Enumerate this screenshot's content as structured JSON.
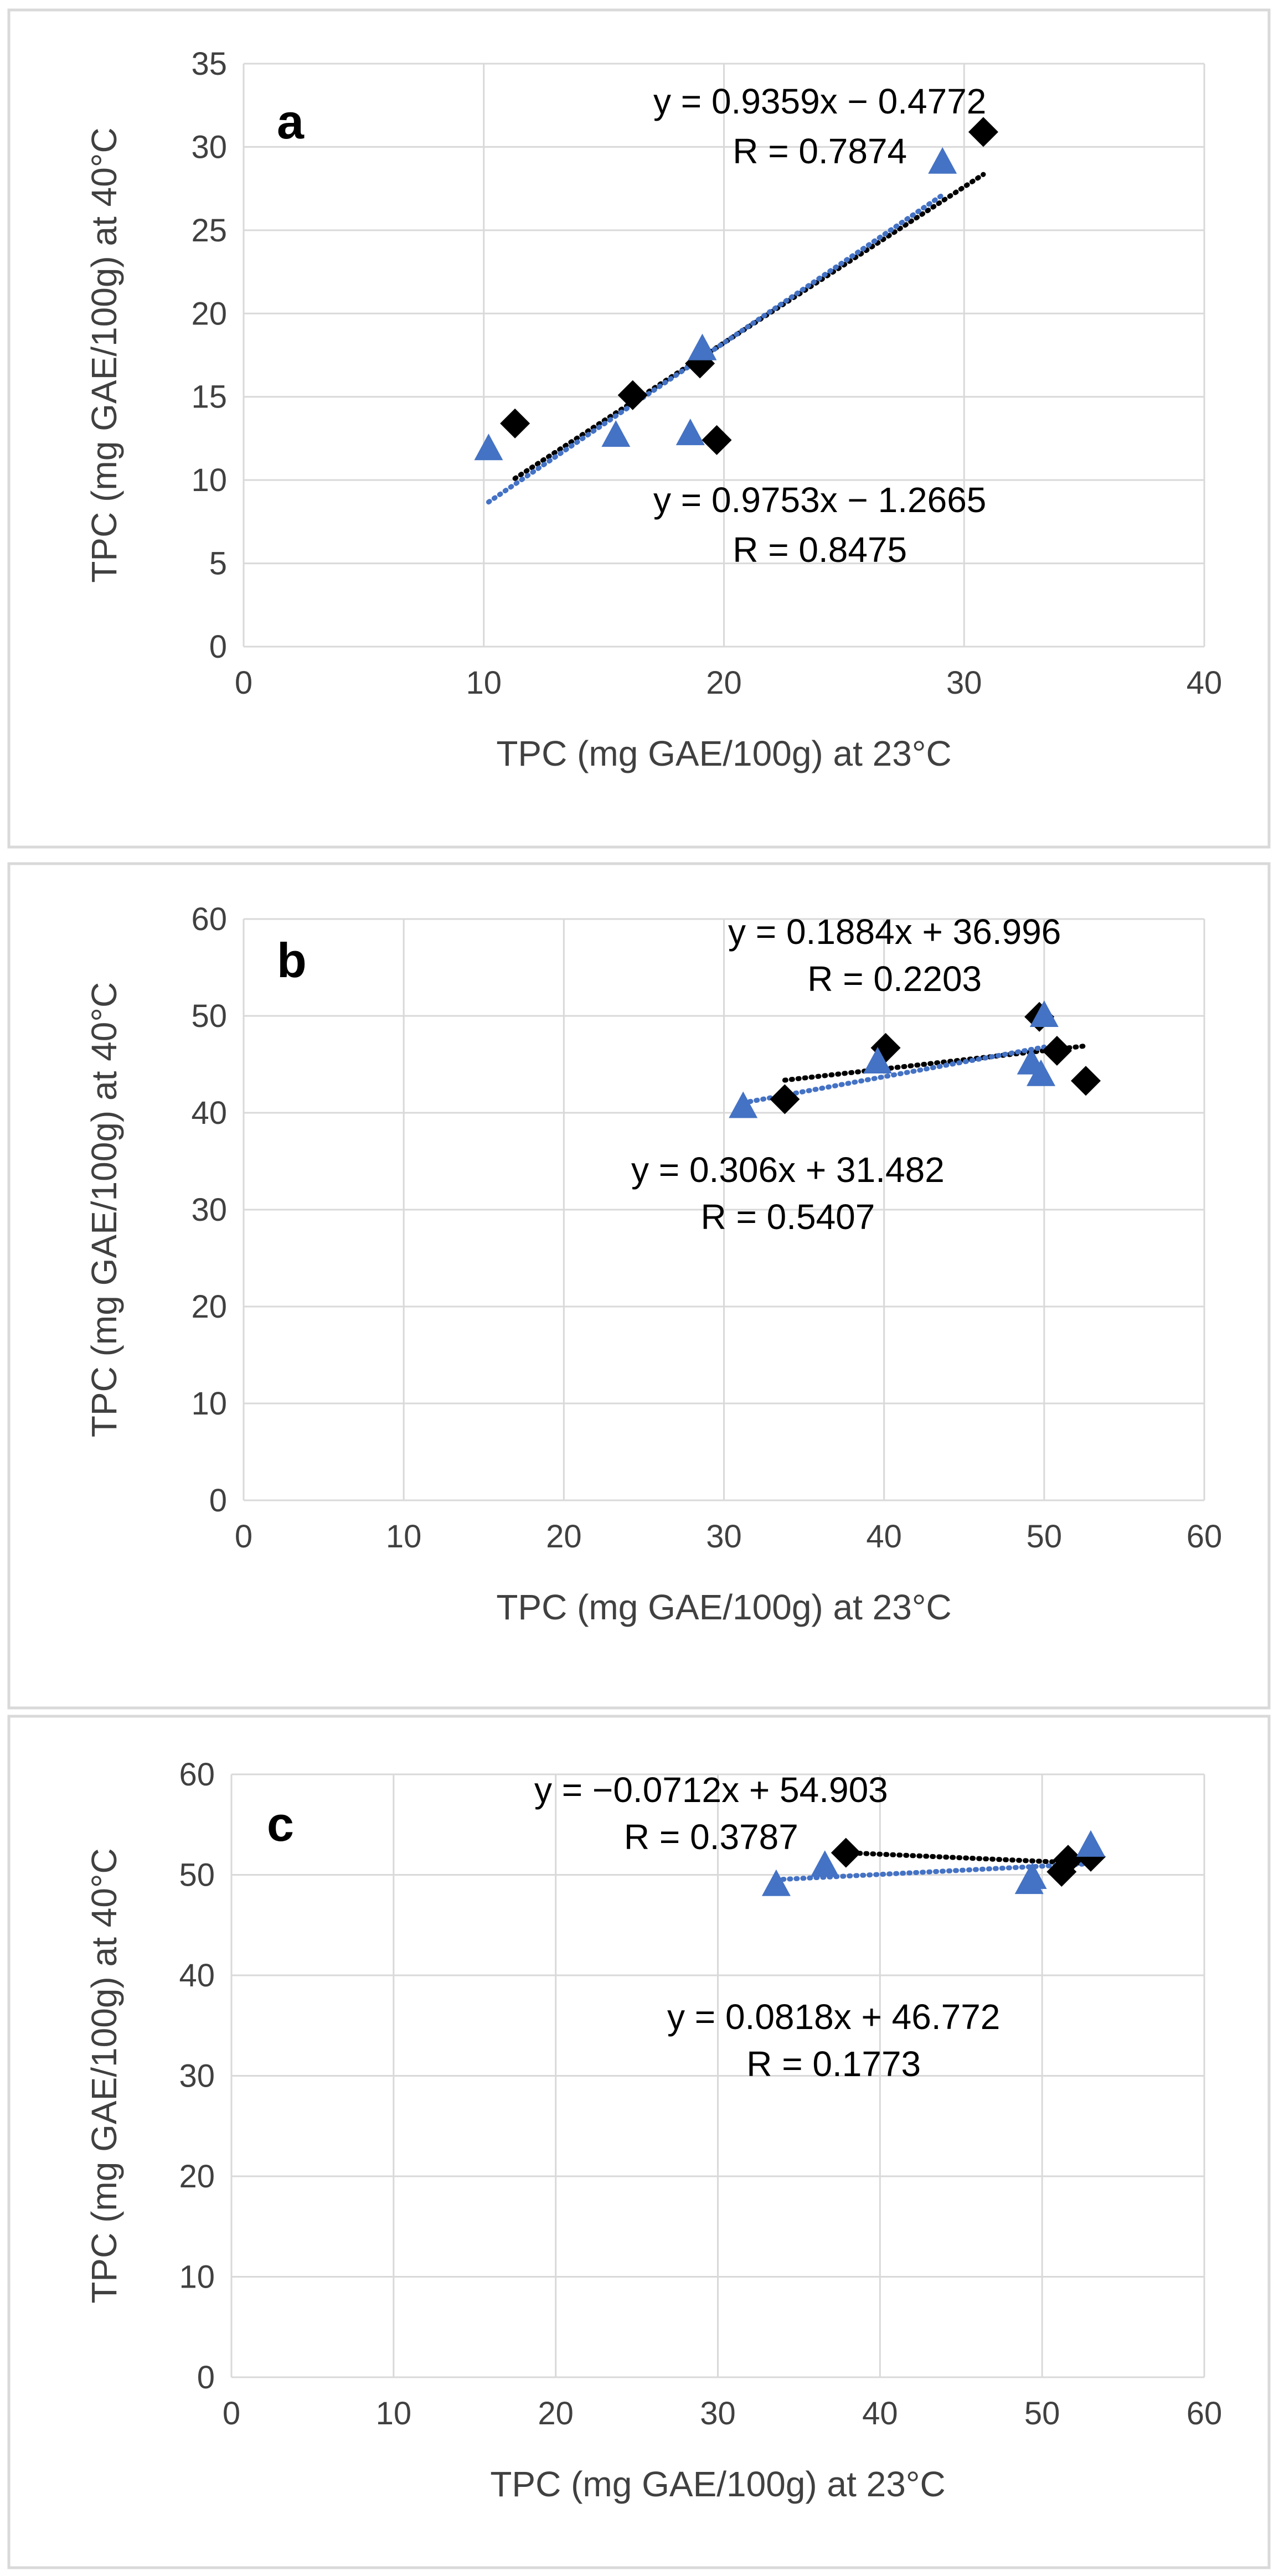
{
  "colors": {
    "series_a_marker": "#000000",
    "series_b_marker": "#4472C4",
    "trend_black": "#000000",
    "trend_blue": "#4472C4",
    "grid": "#d9d9d9",
    "text": "#404040"
  },
  "chart_data": [
    {
      "type": "scatter",
      "panel_label": "a",
      "xlabel": "TPC (mg GAE/100g) at 23°C",
      "ylabel": "TPC (mg GAE/100g) at 40°C",
      "xlim": [
        0,
        40
      ],
      "xticks": [
        0,
        10,
        20,
        30,
        40
      ],
      "ylim": [
        0,
        35
      ],
      "yticks": [
        0,
        5,
        10,
        15,
        20,
        25,
        30,
        35
      ],
      "series": [
        {
          "name": "diamond",
          "marker": "diamond",
          "points": [
            [
              11.3,
              13.4
            ],
            [
              16.2,
              15.1
            ],
            [
              19.0,
              17.0
            ],
            [
              19.7,
              12.4
            ],
            [
              30.8,
              30.9
            ]
          ],
          "trend": {
            "slope": 0.9359,
            "intercept": -0.4772,
            "x_range": [
              11.3,
              30.8
            ]
          },
          "equation": "y = 0.9359x − 0.4772",
          "r": "R = 0.7874"
        },
        {
          "name": "triangle",
          "marker": "triangle",
          "points": [
            [
              10.2,
              11.8
            ],
            [
              15.5,
              12.6
            ],
            [
              18.6,
              12.7
            ],
            [
              19.1,
              17.8
            ],
            [
              29.1,
              29.0
            ]
          ],
          "trend": {
            "slope": 0.9753,
            "intercept": -1.2665,
            "x_range": [
              10.2,
              29.1
            ]
          },
          "equation": "y = 0.9753x − 1.2665",
          "r": "R = 0.8475"
        }
      ]
    },
    {
      "type": "scatter",
      "panel_label": "b",
      "xlabel": "TPC (mg GAE/100g) at 23°C",
      "ylabel": "TPC (mg GAE/100g) at 40°C",
      "xlim": [
        0,
        60
      ],
      "xticks": [
        0,
        10,
        20,
        30,
        40,
        50,
        60
      ],
      "ylim": [
        0,
        60
      ],
      "yticks": [
        0,
        10,
        20,
        30,
        40,
        50,
        60
      ],
      "series": [
        {
          "name": "diamond",
          "marker": "diamond",
          "points": [
            [
              33.8,
              41.4
            ],
            [
              40.1,
              46.7
            ],
            [
              49.7,
              49.9
            ],
            [
              50.8,
              46.4
            ],
            [
              52.6,
              43.3
            ]
          ],
          "trend": {
            "slope": 0.1884,
            "intercept": 36.996,
            "x_range": [
              33.8,
              52.6
            ]
          },
          "equation": "y = 0.1884x + 36.996",
          "r": "R = 0.2203"
        },
        {
          "name": "triangle",
          "marker": "triangle",
          "points": [
            [
              31.2,
              40.5
            ],
            [
              39.6,
              45.1
            ],
            [
              49.2,
              45.0
            ],
            [
              49.8,
              43.8
            ],
            [
              50.0,
              49.9
            ]
          ],
          "trend": {
            "slope": 0.306,
            "intercept": 31.482,
            "x_range": [
              31.2,
              50.0
            ]
          },
          "equation": "y = 0.306x + 31.482",
          "r": "R = 0.5407"
        }
      ]
    },
    {
      "type": "scatter",
      "panel_label": "c",
      "xlabel": "TPC (mg GAE/100g) at 23°C",
      "ylabel": "TPC (mg GAE/100g) at 40°C",
      "xlim": [
        0,
        60
      ],
      "xticks": [
        0,
        10,
        20,
        30,
        40,
        50,
        60
      ],
      "ylim": [
        0,
        60
      ],
      "yticks": [
        0,
        10,
        20,
        30,
        40,
        50,
        60
      ],
      "series": [
        {
          "name": "diamond",
          "marker": "diamond",
          "points": [
            [
              37.9,
              52.2
            ],
            [
              51.2,
              50.3
            ],
            [
              51.6,
              51.5
            ],
            [
              53.0,
              51.8
            ]
          ],
          "trend": {
            "slope": -0.0712,
            "intercept": 54.903,
            "x_range": [
              37.9,
              53.0
            ]
          },
          "equation": "y = −0.0712x + 54.903",
          "r": "R = 0.3787"
        },
        {
          "name": "triangle",
          "marker": "triangle",
          "points": [
            [
              33.6,
              48.9
            ],
            [
              36.6,
              50.8
            ],
            [
              49.2,
              49.1
            ],
            [
              49.4,
              49.6
            ],
            [
              53.0,
              52.8
            ]
          ],
          "trend": {
            "slope": 0.0818,
            "intercept": 46.772,
            "x_range": [
              33.6,
              53.0
            ]
          },
          "equation": "y = 0.0818x + 46.772",
          "r": "R = 0.1773"
        }
      ]
    }
  ]
}
